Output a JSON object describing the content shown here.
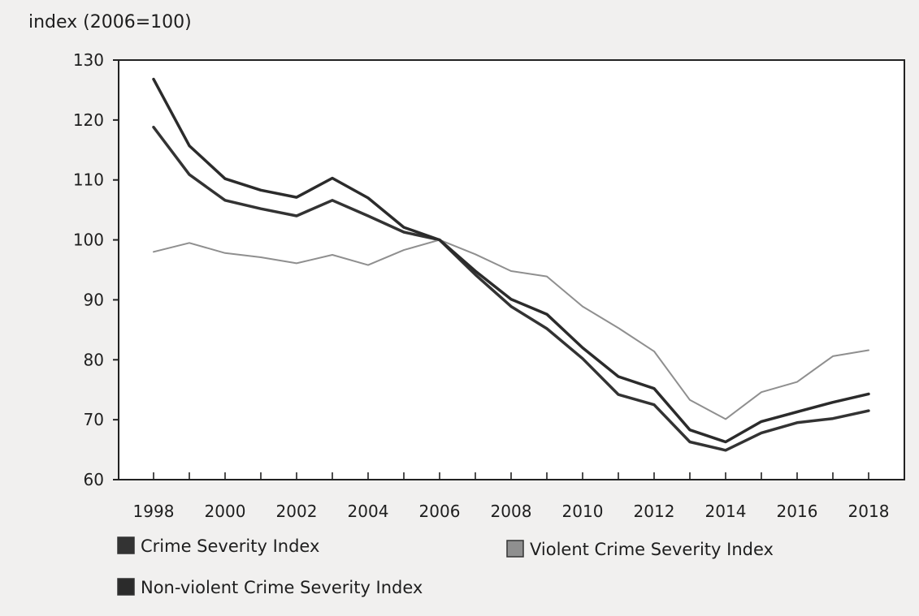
{
  "chart_data": {
    "type": "line",
    "y_unit_label": "index (2006=100)",
    "x": [
      1998,
      1999,
      2000,
      2001,
      2002,
      2003,
      2004,
      2005,
      2006,
      2007,
      2008,
      2009,
      2010,
      2011,
      2012,
      2013,
      2014,
      2015,
      2016,
      2017,
      2018
    ],
    "x_tick_labels": [
      "1998",
      "2000",
      "2002",
      "2004",
      "2006",
      "2008",
      "2010",
      "2012",
      "2014",
      "2016",
      "2018"
    ],
    "ylim": [
      60,
      130
    ],
    "y_ticks": [
      60,
      70,
      80,
      90,
      100,
      110,
      120,
      130
    ],
    "grid": false,
    "legend_position": "bottom",
    "series": [
      {
        "name": "Crime Severity Index",
        "color": "#333333",
        "values": [
          118.8,
          110.9,
          106.6,
          105.2,
          104.0,
          106.6,
          104.0,
          101.3,
          100.0,
          94.2,
          88.9,
          85.2,
          80.2,
          74.2,
          72.5,
          66.3,
          64.9,
          67.8,
          69.5,
          70.2,
          71.5
        ]
      },
      {
        "name": "Violent Crime Severity Index",
        "color": "#8f8f8f",
        "values": [
          98.0,
          99.5,
          97.8,
          97.1,
          96.1,
          97.5,
          95.8,
          98.3,
          100.0,
          97.6,
          94.8,
          93.9,
          88.9,
          85.3,
          81.4,
          73.3,
          70.1,
          74.6,
          76.3,
          80.6,
          81.6
        ]
      },
      {
        "name": "Non-violent Crime Severity Index",
        "color": "#2b2b2b",
        "values": [
          126.8,
          115.7,
          110.2,
          108.3,
          107.1,
          110.3,
          107.0,
          102.1,
          100.0,
          94.8,
          90.1,
          87.6,
          82.0,
          77.2,
          75.2,
          68.3,
          66.3,
          69.7,
          71.3,
          72.9,
          74.3
        ]
      }
    ]
  }
}
